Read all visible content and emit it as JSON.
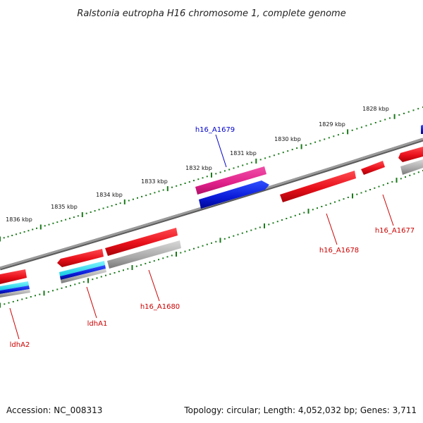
{
  "title": "Ralstonia eutropha H16 chromosome 1, complete genome",
  "accession": "Accession: NC_008313",
  "summary": "Topology: circular; Length: 4,052,032 bp; Genes: 3,711",
  "colors": {
    "backbone": "#8a8a8a",
    "tick": "#1a7a1a",
    "red": "#e8101a",
    "magenta": "#e0208a",
    "blue": "#0a1ad8",
    "cyan": "#20e0f0",
    "gray": "#a8a8a8",
    "label_red": "#cc0000",
    "label_blue": "#0000cc"
  },
  "ticks": [
    "1836 kbp",
    "1835 kbp",
    "1834 kbp",
    "1833 kbp",
    "1832 kbp",
    "1831 kbp",
    "1830 kbp",
    "1829 kbp",
    "1828 kbp"
  ],
  "genes": [
    {
      "label": "h16_A1679",
      "color": "blue"
    },
    {
      "label": "h16_A1677",
      "color": "red"
    },
    {
      "label": "h16_A1678",
      "color": "red"
    },
    {
      "label": "h16_A1680",
      "color": "red"
    },
    {
      "label": "ldhA1",
      "color": "red"
    },
    {
      "label": "ldhA2",
      "color": "red"
    }
  ]
}
